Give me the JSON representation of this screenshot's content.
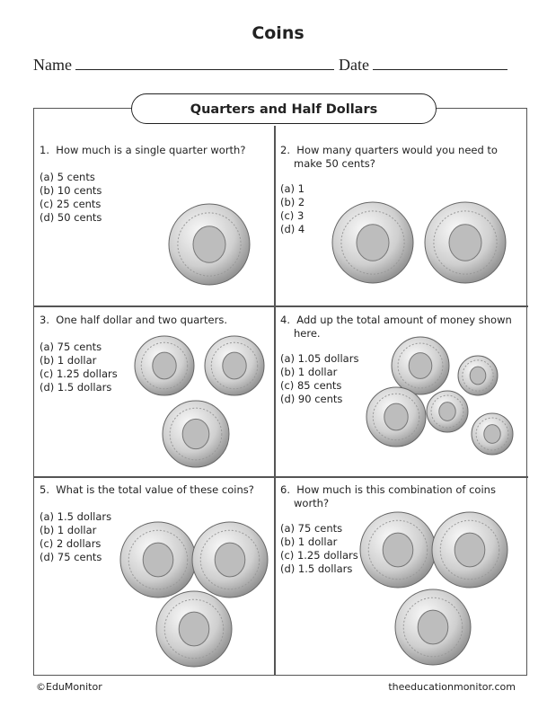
{
  "title": "Coins",
  "name_label": "Name",
  "date_label": "Date",
  "section_title": "Quarters and Half Dollars",
  "questions": [
    {
      "number": "1.",
      "text": "How much is a single quarter worth?",
      "options": [
        "(a) 5 cents",
        "(b) 10 cents",
        "(c) 25 cents",
        "(d) 50 cents"
      ],
      "coins": [
        "quarter"
      ]
    },
    {
      "number": "2.",
      "text": "How many quarters would you need to make 50 cents?",
      "options": [
        "(a) 1",
        "(b) 2",
        "(c) 3",
        "(d) 4"
      ],
      "coins": [
        "quarter",
        "quarter"
      ]
    },
    {
      "number": "3.",
      "text": "One half dollar and two quarters.",
      "options": [
        "(a) 75 cents",
        "(b) 1 dollar",
        "(c) 1.25 dollars",
        "(d) 1.5 dollars"
      ],
      "coins": [
        "quarter",
        "quarter",
        "half-dollar"
      ]
    },
    {
      "number": "4.",
      "text": "Add up the total amount of money shown here.",
      "options": [
        "(a) 1.05 dollars",
        "(b) 1 dollar",
        "(c) 85 cents",
        "(d) 90 cents"
      ],
      "coins": [
        "quarter",
        "dime",
        "half-dollar",
        "dime",
        "dime"
      ]
    },
    {
      "number": "5.",
      "text": "What is the total value of these coins?",
      "options": [
        "(a) 1.5 dollars",
        "(b) 1 dollar",
        "(c) 2 dollars",
        "(d) 75 cents"
      ],
      "coins": [
        "half-dollar",
        "half-dollar",
        "half-dollar"
      ]
    },
    {
      "number": "6.",
      "text": "How much is this combination of coins worth?",
      "options": [
        "(a) 75 cents",
        "(b) 1 dollar",
        "(c) 1.25 dollars",
        "(d) 1.5 dollars"
      ],
      "coins": [
        "quarter",
        "quarter",
        "half-dollar"
      ]
    }
  ],
  "footer": {
    "left": "©EduMonitor",
    "right": "theeducationmonitor.com"
  }
}
